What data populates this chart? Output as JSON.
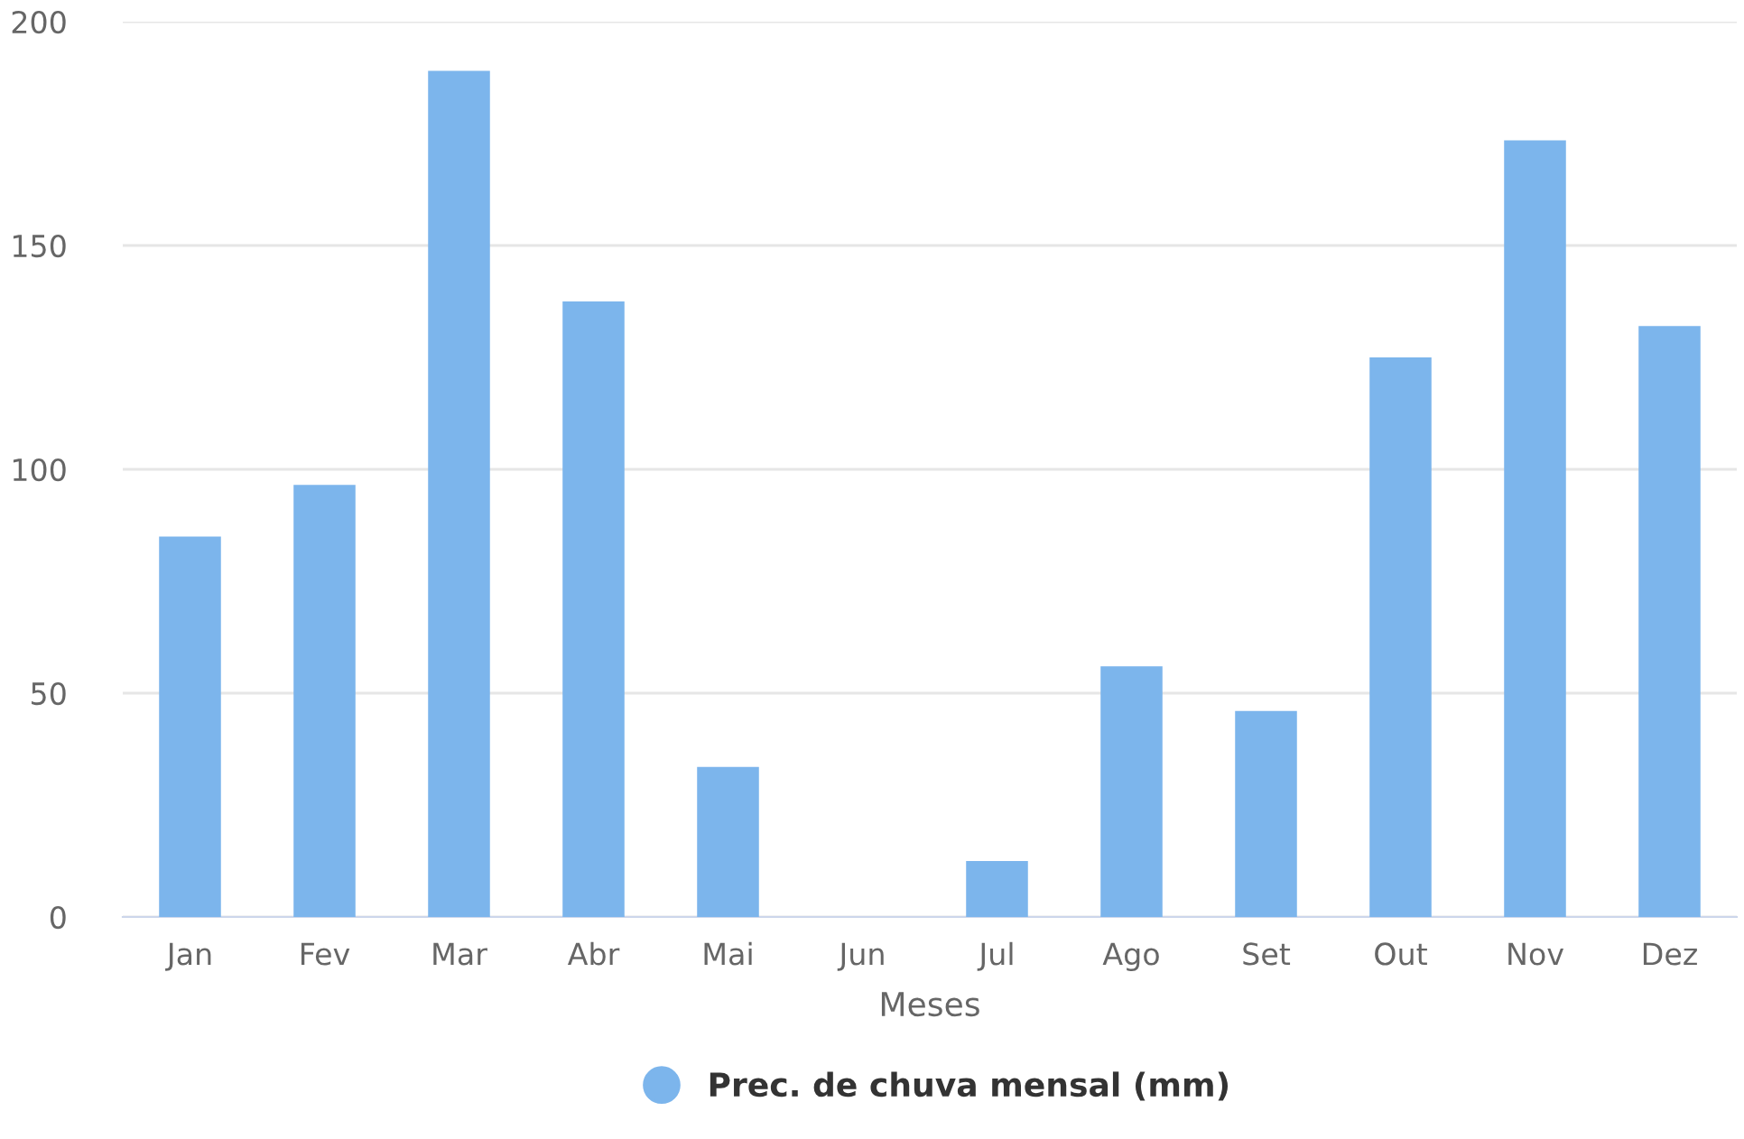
{
  "chart_data": {
    "type": "bar",
    "xlabel": "Meses",
    "categories": [
      "Jan",
      "Fev",
      "Mar",
      "Abr",
      "Mai",
      "Jun",
      "Jul",
      "Ago",
      "Set",
      "Out",
      "Nov",
      "Dez"
    ],
    "series": [
      {
        "name": "Prec. de chuva mensal (mm)",
        "color": "#7cb5ec",
        "values": [
          85,
          96.5,
          189,
          137.5,
          33.5,
          0,
          12.5,
          56,
          46,
          125,
          173.5,
          132
        ]
      }
    ],
    "ylim": [
      0,
      200
    ],
    "yticks": [
      0,
      50,
      100,
      150,
      200
    ],
    "grid": "y",
    "legend": "bottom"
  }
}
